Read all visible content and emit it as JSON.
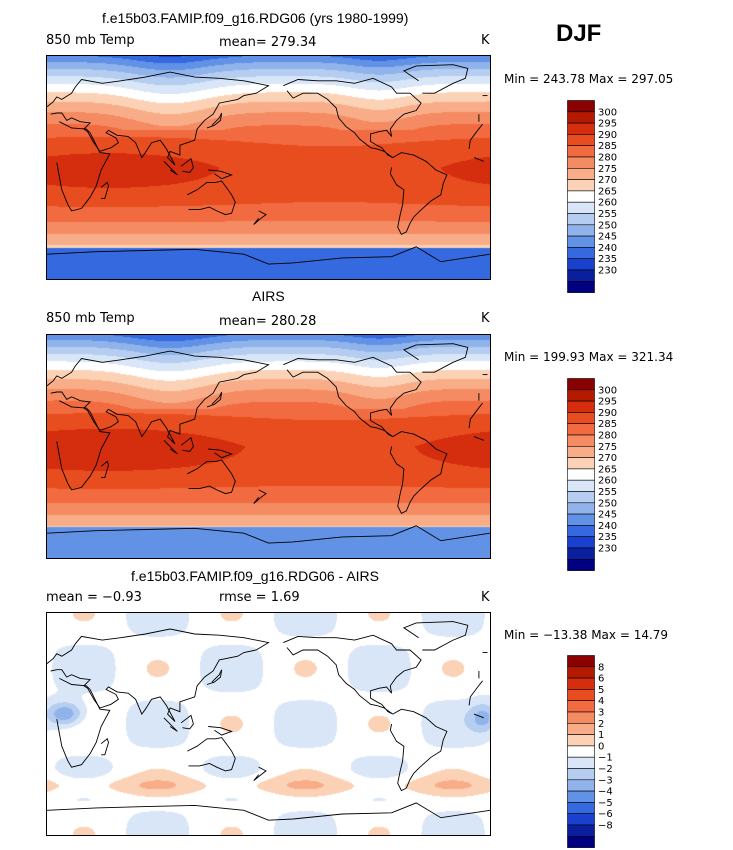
{
  "season": "DJF",
  "units_label": "K",
  "panels": [
    {
      "id": "model",
      "title": "f.e15b03.FAMIP.f09_g16.RDG06 (yrs 1980-1999)",
      "field": "850 mb Temp",
      "stat1": "mean= 279.34",
      "stat2": "",
      "minmax": "Min = 243.78 Max = 297.05",
      "type": "abs",
      "colorbar": {
        "labels": [
          "300",
          "295",
          "290",
          "285",
          "280",
          "275",
          "270",
          "265",
          "260",
          "255",
          "250",
          "245",
          "240",
          "235",
          "230"
        ],
        "colors": [
          "#8b0000",
          "#b31a00",
          "#d42e0e",
          "#e84d1f",
          "#f26a3f",
          "#f58b62",
          "#f8ad88",
          "#fbd2b6",
          "#ffffff",
          "#d9e6f7",
          "#b4cdf0",
          "#8fb3ea",
          "#6192e6",
          "#3469e0",
          "#1a40d0",
          "#0a1f9e",
          "#000080"
        ]
      }
    },
    {
      "id": "obs",
      "title": "AIRS",
      "field": "850 mb Temp",
      "stat1": "mean= 280.28",
      "stat2": "",
      "minmax": "Min = 199.93 Max = 321.34",
      "type": "abs",
      "colorbar": {
        "labels": [
          "300",
          "295",
          "290",
          "285",
          "280",
          "275",
          "270",
          "265",
          "260",
          "255",
          "250",
          "245",
          "240",
          "235",
          "230"
        ],
        "colors": [
          "#8b0000",
          "#b31a00",
          "#d42e0e",
          "#e84d1f",
          "#f26a3f",
          "#f58b62",
          "#f8ad88",
          "#fbd2b6",
          "#ffffff",
          "#d9e6f7",
          "#b4cdf0",
          "#8fb3ea",
          "#6192e6",
          "#3469e0",
          "#1a40d0",
          "#0a1f9e",
          "#000080"
        ]
      }
    },
    {
      "id": "diff",
      "title": "f.e15b03.FAMIP.f09_g16.RDG06 - AIRS",
      "field": "mean =   −0.93",
      "stat1": "rmse =   1.69",
      "stat2": "",
      "minmax": "Min = −13.38 Max =  14.79",
      "type": "diff",
      "colorbar": {
        "labels": [
          "8",
          "6",
          "5",
          "4",
          "3",
          "2",
          "1",
          "0",
          "−1",
          "−2",
          "−3",
          "−4",
          "−5",
          "−6",
          "−8"
        ],
        "colors": [
          "#8b0000",
          "#b31a00",
          "#d42e0e",
          "#e84d1f",
          "#f26a3f",
          "#f58b62",
          "#f8ad88",
          "#fbd2b6",
          "#ffffff",
          "#d9e6f7",
          "#b4cdf0",
          "#8fb3ea",
          "#6192e6",
          "#3469e0",
          "#1a40d0",
          "#0a1f9e",
          "#000080"
        ]
      }
    }
  ]
}
